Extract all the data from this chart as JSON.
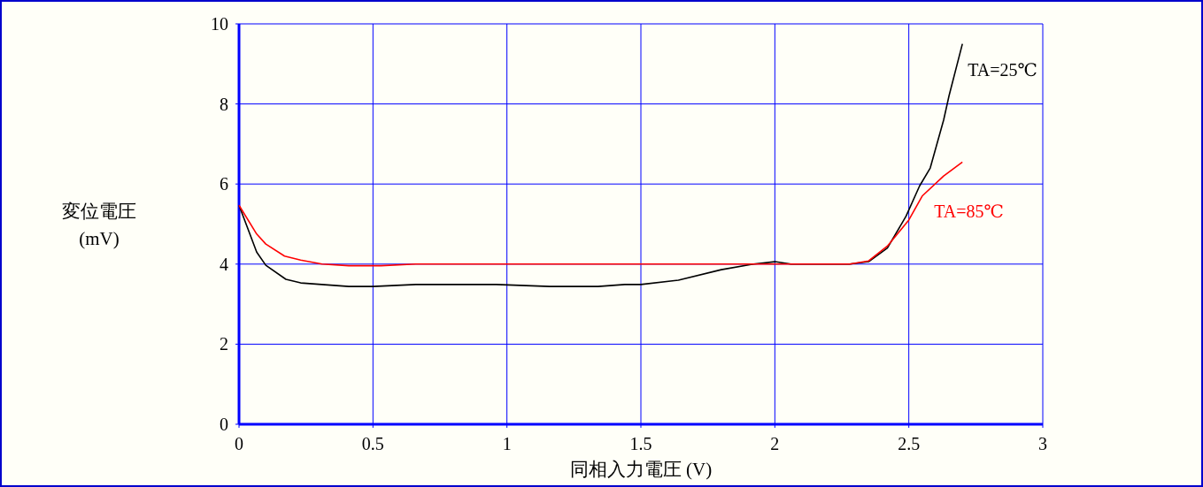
{
  "chart_data": {
    "type": "line",
    "xlabel": "同相入力電圧 (V)",
    "ylabel": "変位電圧\n(mV)",
    "xlim": [
      0,
      3
    ],
    "ylim": [
      0,
      10
    ],
    "xticks": [
      0,
      0.5,
      1,
      1.5,
      2,
      2.5,
      3
    ],
    "yticks": [
      0,
      2,
      4,
      6,
      8,
      10
    ],
    "grid": true,
    "series": [
      {
        "name": "TA=25℃",
        "color": "#000000",
        "x": [
          0,
          0.066,
          0.1,
          0.175,
          0.23,
          0.41,
          0.5,
          0.66,
          0.96,
          1.16,
          1.34,
          1.44,
          1.5,
          1.64,
          1.8,
          1.92,
          2.0,
          2.06,
          2.28,
          2.35,
          2.42,
          2.49,
          2.54,
          2.58,
          2.63,
          2.65,
          2.7
        ],
        "values": [
          5.47,
          4.3,
          3.97,
          3.62,
          3.53,
          3.44,
          3.44,
          3.49,
          3.49,
          3.44,
          3.44,
          3.49,
          3.49,
          3.6,
          3.86,
          4.0,
          4.06,
          4.0,
          4.0,
          4.06,
          4.4,
          5.2,
          5.95,
          6.4,
          7.6,
          8.2,
          9.5
        ]
      },
      {
        "name": "TA=85℃",
        "color": "#ff0000",
        "x": [
          0,
          0.066,
          0.1,
          0.17,
          0.23,
          0.31,
          0.41,
          0.53,
          0.66,
          2.28,
          2.35,
          2.42,
          2.5,
          2.55,
          2.63,
          2.7
        ],
        "values": [
          5.47,
          4.75,
          4.5,
          4.2,
          4.1,
          4.0,
          3.96,
          3.96,
          4.0,
          4.0,
          4.08,
          4.45,
          5.1,
          5.7,
          6.2,
          6.55
        ]
      }
    ]
  }
}
